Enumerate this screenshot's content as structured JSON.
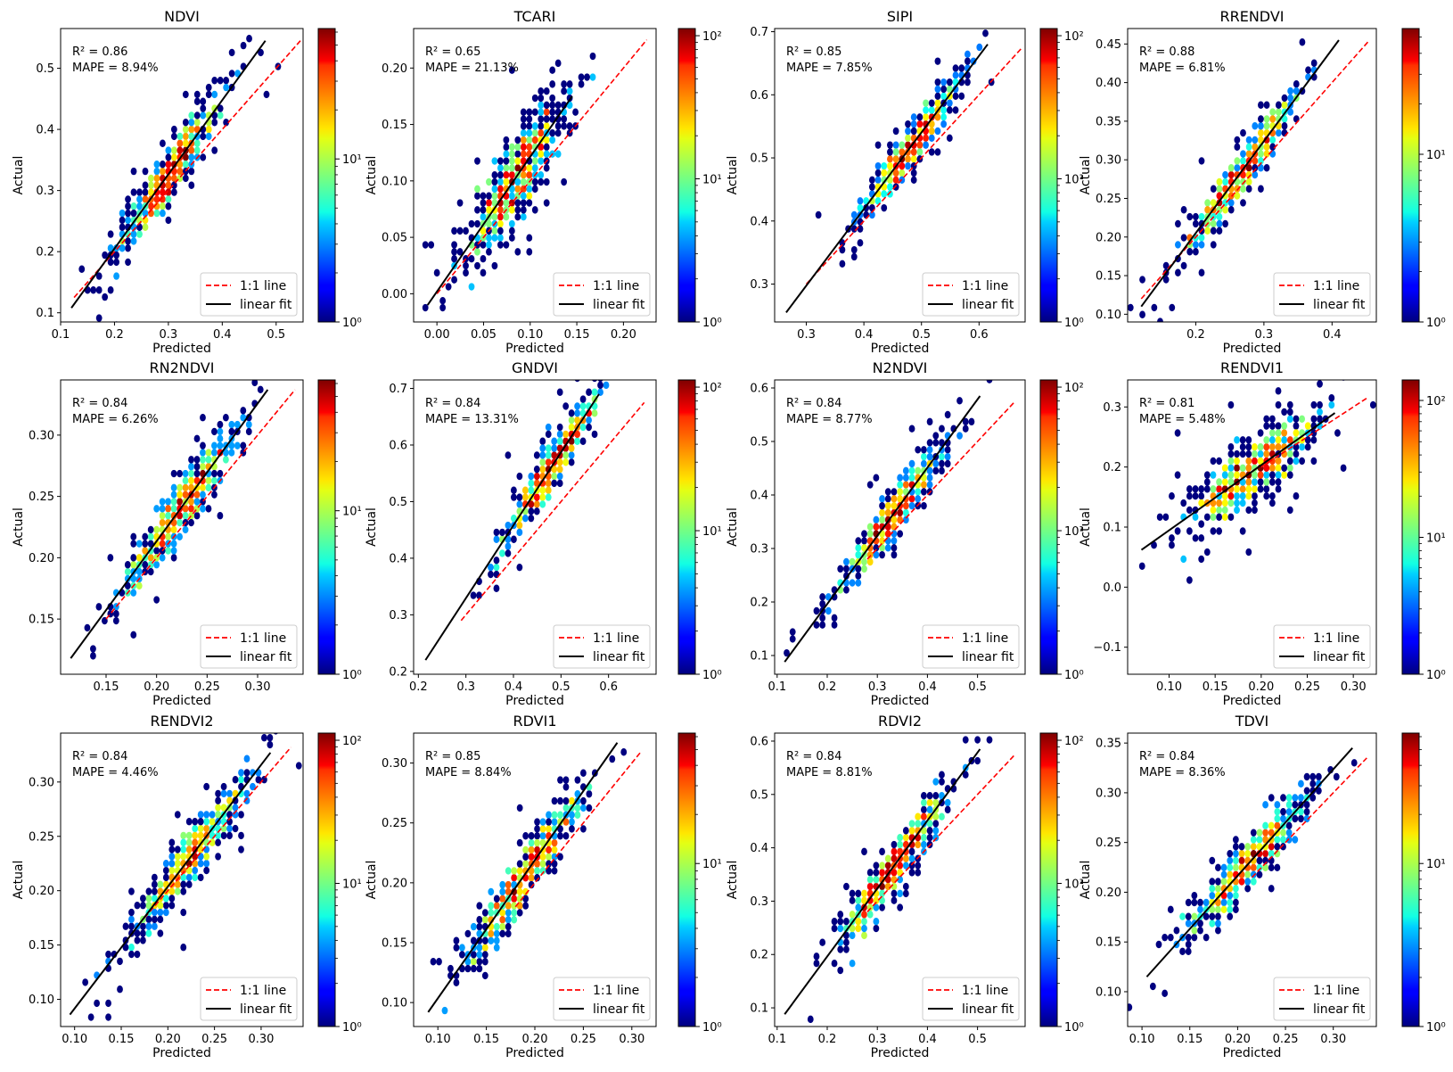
{
  "figure": {
    "xlabel": "Predicted",
    "ylabel": "Actual",
    "colormap": "jet",
    "colorbar_scale": "log",
    "legend": {
      "placement": "lower-right",
      "one_to_one_label": "1:1 line",
      "fit_label": "linear fit"
    },
    "colors": {
      "one_to_one": "#ff0000",
      "fit": "#000000",
      "background": "#ffffff"
    }
  },
  "chart_data": [
    {
      "type": "scatter",
      "title": "NDVI",
      "r2_text": "R² = 0.86",
      "mape_text": "MAPE = 8.94%",
      "xlim": [
        0.1,
        0.55
      ],
      "ylim": [
        0.085,
        0.565
      ],
      "xticks": [
        0.1,
        0.2,
        0.3,
        0.4,
        0.5
      ],
      "yticks": [
        0.1,
        0.2,
        0.3,
        0.4,
        0.5
      ],
      "one_to_one": [
        0.125,
        0.545
      ],
      "fit": {
        "x": [
          0.12,
          0.48
        ],
        "y": [
          0.108,
          0.545
        ]
      },
      "center": [
        0.3,
        0.33
      ],
      "spread": 0.045,
      "width": 0.02,
      "colorbar": {
        "max_exp": 1.8,
        "ticks": [
          0,
          1
        ],
        "labels": [
          "10⁰",
          "10¹"
        ]
      }
    },
    {
      "type": "scatter",
      "title": "TCARI",
      "r2_text": "R² = 0.65",
      "mape_text": "MAPE = 21.13%",
      "xlim": [
        -0.025,
        0.235
      ],
      "ylim": [
        -0.025,
        0.235
      ],
      "xticks": [
        0.0,
        0.05,
        0.1,
        0.15,
        0.2
      ],
      "yticks": [
        0.0,
        0.05,
        0.1,
        0.15,
        0.2
      ],
      "one_to_one": [
        0.0,
        0.225
      ],
      "fit": {
        "x": [
          -0.01,
          0.145
        ],
        "y": [
          -0.01,
          0.175
        ]
      },
      "center": [
        0.085,
        0.11
      ],
      "spread": 0.025,
      "width": 0.018,
      "colorbar": {
        "max_exp": 2.05,
        "ticks": [
          0,
          1,
          2
        ],
        "labels": [
          "10⁰",
          "10¹",
          "10²"
        ]
      }
    },
    {
      "type": "scatter",
      "title": "SIPI",
      "r2_text": "R² = 0.85",
      "mape_text": "MAPE = 7.85%",
      "xlim": [
        0.245,
        0.68
      ],
      "ylim": [
        0.24,
        0.705
      ],
      "xticks": [
        0.3,
        0.4,
        0.5,
        0.6
      ],
      "yticks": [
        0.3,
        0.4,
        0.5,
        0.6,
        0.7
      ],
      "one_to_one": [
        0.3,
        0.675
      ],
      "fit": {
        "x": [
          0.265,
          0.615
        ],
        "y": [
          0.255,
          0.68
        ]
      },
      "center": [
        0.48,
        0.52
      ],
      "spread": 0.04,
      "width": 0.015,
      "colorbar": {
        "max_exp": 2.05,
        "ticks": [
          0,
          1,
          2
        ],
        "labels": [
          "10⁰",
          "10¹",
          "10²"
        ]
      }
    },
    {
      "type": "scatter",
      "title": "RRENDVI",
      "r2_text": "R² = 0.88",
      "mape_text": "MAPE = 6.81%",
      "xlim": [
        0.1,
        0.465
      ],
      "ylim": [
        0.09,
        0.47
      ],
      "xticks": [
        0.2,
        0.3,
        0.4
      ],
      "yticks": [
        0.1,
        0.15,
        0.2,
        0.25,
        0.3,
        0.35,
        0.4,
        0.45
      ],
      "one_to_one": [
        0.12,
        0.455
      ],
      "fit": {
        "x": [
          0.12,
          0.41
        ],
        "y": [
          0.11,
          0.455
        ]
      },
      "center": [
        0.27,
        0.3
      ],
      "spread": 0.04,
      "width": 0.014,
      "colorbar": {
        "max_exp": 1.75,
        "ticks": [
          0,
          1
        ],
        "labels": [
          "10⁰",
          "10¹"
        ]
      }
    },
    {
      "type": "scatter",
      "title": "RN2NDVI",
      "r2_text": "R² = 0.84",
      "mape_text": "MAPE = 6.26%",
      "xlim": [
        0.105,
        0.345
      ],
      "ylim": [
        0.105,
        0.345
      ],
      "xticks": [
        0.15,
        0.2,
        0.25,
        0.3
      ],
      "yticks": [
        0.15,
        0.2,
        0.25,
        0.3
      ],
      "one_to_one": [
        0.15,
        0.337
      ],
      "fit": {
        "x": [
          0.115,
          0.31
        ],
        "y": [
          0.118,
          0.337
        ]
      },
      "center": [
        0.225,
        0.24
      ],
      "spread": 0.028,
      "width": 0.011,
      "colorbar": {
        "max_exp": 1.8,
        "ticks": [
          0,
          1
        ],
        "labels": [
          "10⁰",
          "10¹"
        ]
      }
    },
    {
      "type": "scatter",
      "title": "GNDVI",
      "r2_text": "R² = 0.84",
      "mape_text": "MAPE = 13.31%",
      "xlim": [
        0.19,
        0.7
      ],
      "ylim": [
        0.195,
        0.715
      ],
      "xticks": [
        0.2,
        0.3,
        0.4,
        0.5,
        0.6
      ],
      "yticks": [
        0.2,
        0.3,
        0.4,
        0.5,
        0.6,
        0.7
      ],
      "one_to_one": [
        0.29,
        0.675
      ],
      "fit": {
        "x": [
          0.215,
          0.58
        ],
        "y": [
          0.22,
          0.69
        ]
      },
      "center": [
        0.48,
        0.56
      ],
      "spread": 0.05,
      "width": 0.018,
      "colorbar": {
        "max_exp": 2.05,
        "ticks": [
          0,
          1,
          2
        ],
        "labels": [
          "10⁰",
          "10¹",
          "10²"
        ]
      }
    },
    {
      "type": "scatter",
      "title": "N2NDVI",
      "r2_text": "R² = 0.84",
      "mape_text": "MAPE = 8.77%",
      "xlim": [
        0.095,
        0.595
      ],
      "ylim": [
        0.065,
        0.615
      ],
      "xticks": [
        0.1,
        0.2,
        0.3,
        0.4,
        0.5
      ],
      "yticks": [
        0.1,
        0.2,
        0.3,
        0.4,
        0.5,
        0.6
      ],
      "one_to_one": [
        0.28,
        0.575
      ],
      "fit": {
        "x": [
          0.115,
          0.505
        ],
        "y": [
          0.088,
          0.585
        ]
      },
      "center": [
        0.33,
        0.37
      ],
      "spread": 0.05,
      "width": 0.02,
      "colorbar": {
        "max_exp": 2.05,
        "ticks": [
          0,
          1,
          2
        ],
        "labels": [
          "10⁰",
          "10¹",
          "10²"
        ]
      }
    },
    {
      "type": "scatter",
      "title": "RENDVI1",
      "r2_text": "R² = 0.81",
      "mape_text": "MAPE = 5.48%",
      "xlim": [
        0.055,
        0.325
      ],
      "ylim": [
        -0.145,
        0.345
      ],
      "xticks": [
        0.1,
        0.15,
        0.2,
        0.25,
        0.3
      ],
      "yticks": [
        -0.1,
        0.0,
        0.1,
        0.2,
        0.3
      ],
      "one_to_one": [
        0.2,
        0.315
      ],
      "fit": {
        "x": [
          0.07,
          0.28
        ],
        "y": [
          0.062,
          0.29
        ]
      },
      "center": [
        0.19,
        0.2
      ],
      "spread": 0.035,
      "width": 0.025,
      "colorbar": {
        "max_exp": 2.15,
        "ticks": [
          0,
          1,
          2
        ],
        "labels": [
          "10⁰",
          "10¹",
          "10²"
        ]
      }
    },
    {
      "type": "scatter",
      "title": "RENDVI2",
      "r2_text": "R² = 0.84",
      "mape_text": "MAPE = 4.46%",
      "xlim": [
        0.085,
        0.345
      ],
      "ylim": [
        0.075,
        0.345
      ],
      "xticks": [
        0.1,
        0.15,
        0.2,
        0.25,
        0.3
      ],
      "yticks": [
        0.1,
        0.15,
        0.2,
        0.25,
        0.3
      ],
      "one_to_one": [
        0.175,
        0.332
      ],
      "fit": {
        "x": [
          0.095,
          0.31
        ],
        "y": [
          0.086,
          0.327
        ]
      },
      "center": [
        0.225,
        0.235
      ],
      "spread": 0.03,
      "width": 0.012,
      "colorbar": {
        "max_exp": 2.05,
        "ticks": [
          0,
          1,
          2
        ],
        "labels": [
          "10⁰",
          "10¹",
          "10²"
        ]
      }
    },
    {
      "type": "scatter",
      "title": "RDVI1",
      "r2_text": "R² = 0.85",
      "mape_text": "MAPE = 8.84%",
      "xlim": [
        0.075,
        0.325
      ],
      "ylim": [
        0.08,
        0.325
      ],
      "xticks": [
        0.1,
        0.15,
        0.2,
        0.25,
        0.3
      ],
      "yticks": [
        0.1,
        0.15,
        0.2,
        0.25,
        0.3
      ],
      "one_to_one": [
        0.18,
        0.31
      ],
      "fit": {
        "x": [
          0.09,
          0.285
        ],
        "y": [
          0.092,
          0.317
        ]
      },
      "center": [
        0.19,
        0.21
      ],
      "spread": 0.03,
      "width": 0.011,
      "colorbar": {
        "max_exp": 1.8,
        "ticks": [
          0,
          1
        ],
        "labels": [
          "10⁰",
          "10¹"
        ]
      }
    },
    {
      "type": "scatter",
      "title": "RDVI2",
      "r2_text": "R² = 0.84",
      "mape_text": "MAPE = 8.81%",
      "xlim": [
        0.095,
        0.595
      ],
      "ylim": [
        0.065,
        0.615
      ],
      "xticks": [
        0.1,
        0.2,
        0.3,
        0.4,
        0.5
      ],
      "yticks": [
        0.1,
        0.2,
        0.3,
        0.4,
        0.5,
        0.6
      ],
      "one_to_one": [
        0.28,
        0.575
      ],
      "fit": {
        "x": [
          0.115,
          0.505
        ],
        "y": [
          0.088,
          0.585
        ]
      },
      "center": [
        0.33,
        0.37
      ],
      "spread": 0.05,
      "width": 0.02,
      "colorbar": {
        "max_exp": 2.05,
        "ticks": [
          0,
          1,
          2
        ],
        "labels": [
          "10⁰",
          "10¹",
          "10²"
        ]
      }
    },
    {
      "type": "scatter",
      "title": "TDVI",
      "r2_text": "R² = 0.84",
      "mape_text": "MAPE = 8.36%",
      "xlim": [
        0.085,
        0.345
      ],
      "ylim": [
        0.065,
        0.36
      ],
      "xticks": [
        0.1,
        0.15,
        0.2,
        0.25,
        0.3
      ],
      "yticks": [
        0.1,
        0.15,
        0.2,
        0.25,
        0.3,
        0.35
      ],
      "one_to_one": [
        0.215,
        0.335
      ],
      "fit": {
        "x": [
          0.105,
          0.32
        ],
        "y": [
          0.115,
          0.345
        ]
      },
      "center": [
        0.21,
        0.22
      ],
      "spread": 0.03,
      "width": 0.012,
      "colorbar": {
        "max_exp": 1.8,
        "ticks": [
          0,
          1
        ],
        "labels": [
          "10⁰",
          "10¹"
        ]
      }
    }
  ]
}
